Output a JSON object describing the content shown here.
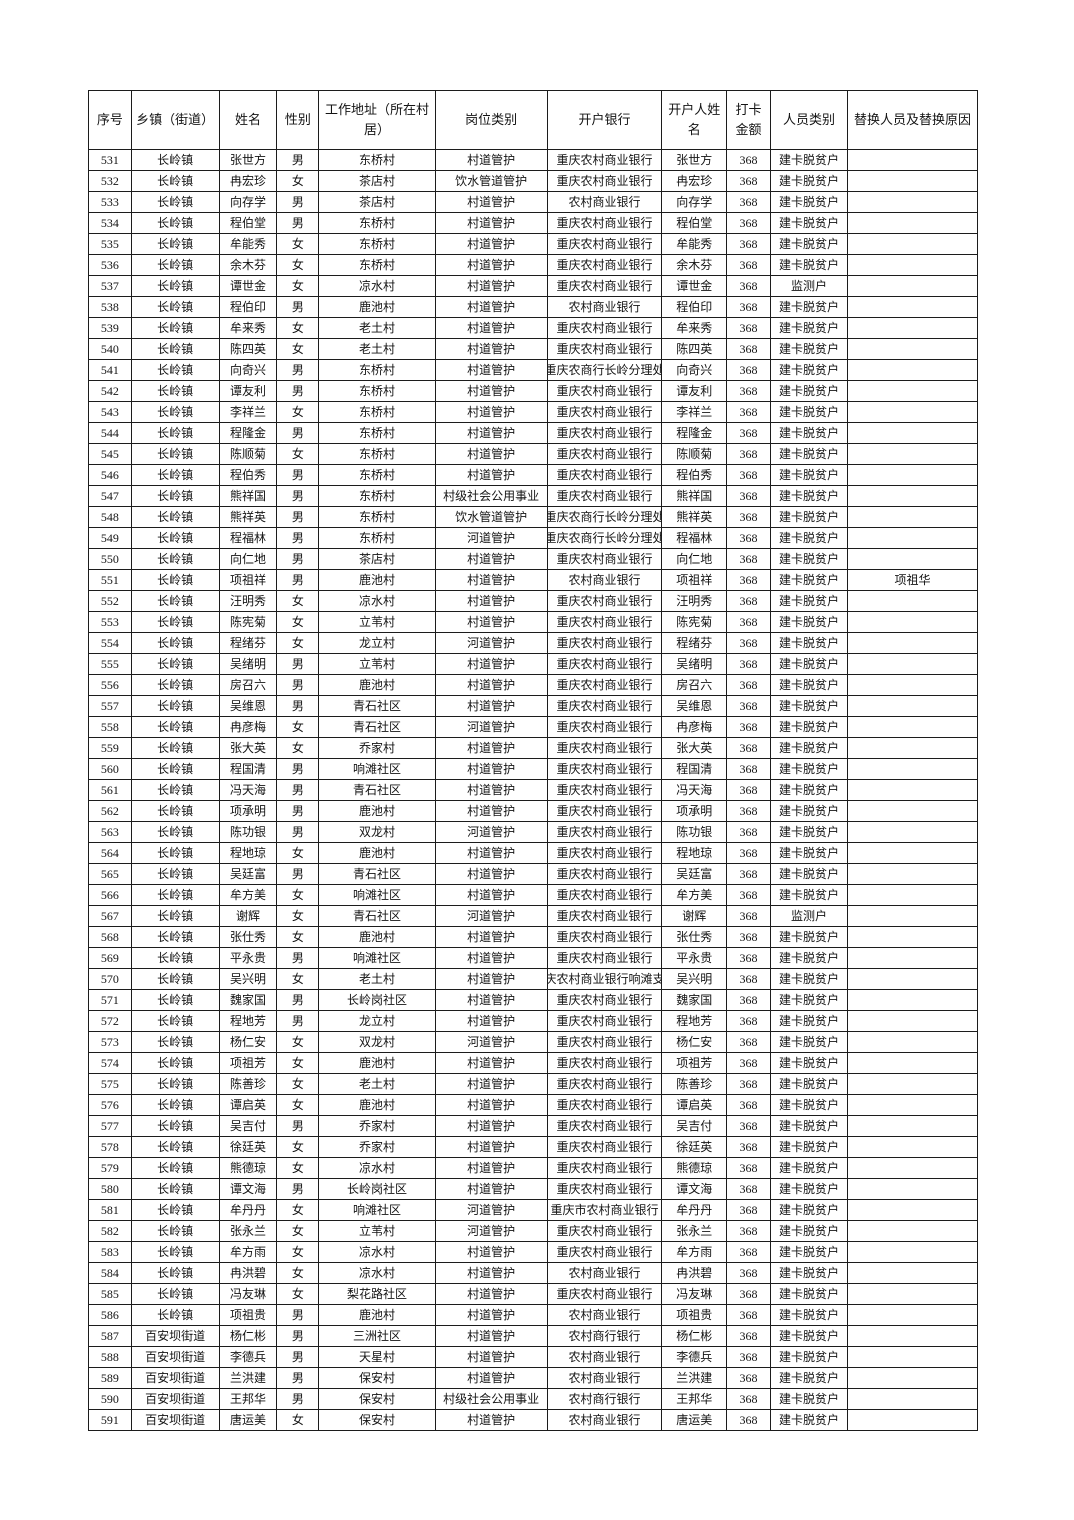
{
  "page": {
    "background_color": "#ffffff",
    "text_color": "#141414",
    "border_color": "#1c1c1c"
  },
  "table": {
    "columns": [
      {
        "key": "seq",
        "label": "序号"
      },
      {
        "key": "town",
        "label": "乡镇（街道）"
      },
      {
        "key": "name",
        "label": "姓名"
      },
      {
        "key": "gender",
        "label": "性别"
      },
      {
        "key": "village",
        "label": "工作地址（所在村居）"
      },
      {
        "key": "job",
        "label": "岗位类别"
      },
      {
        "key": "bank",
        "label": "开户银行"
      },
      {
        "key": "account",
        "label": "开户人姓名"
      },
      {
        "key": "amount",
        "label": "打卡金额"
      },
      {
        "key": "category",
        "label": "人员类别"
      },
      {
        "key": "replace",
        "label": "替换人员及替换原因"
      }
    ],
    "rows": [
      [
        "531",
        "长岭镇",
        "张世方",
        "男",
        "东桥村",
        "村道管护",
        "重庆农村商业银行",
        "张世方",
        "368",
        "建卡脱贫户",
        ""
      ],
      [
        "532",
        "长岭镇",
        "冉宏珍",
        "女",
        "茶店村",
        "饮水管道管护",
        "重庆农村商业银行",
        "冉宏珍",
        "368",
        "建卡脱贫户",
        ""
      ],
      [
        "533",
        "长岭镇",
        "向存学",
        "男",
        "茶店村",
        "村道管护",
        "农村商业银行",
        "向存学",
        "368",
        "建卡脱贫户",
        ""
      ],
      [
        "534",
        "长岭镇",
        "程伯堂",
        "男",
        "东桥村",
        "村道管护",
        "重庆农村商业银行",
        "程伯堂",
        "368",
        "建卡脱贫户",
        ""
      ],
      [
        "535",
        "长岭镇",
        "牟能秀",
        "女",
        "东桥村",
        "村道管护",
        "重庆农村商业银行",
        "牟能秀",
        "368",
        "建卡脱贫户",
        ""
      ],
      [
        "536",
        "长岭镇",
        "余木芬",
        "女",
        "东桥村",
        "村道管护",
        "重庆农村商业银行",
        "余木芬",
        "368",
        "建卡脱贫户",
        ""
      ],
      [
        "537",
        "长岭镇",
        "谭世金",
        "女",
        "凉水村",
        "村道管护",
        "重庆农村商业银行",
        "谭世金",
        "368",
        "监测户",
        ""
      ],
      [
        "538",
        "长岭镇",
        "程伯印",
        "男",
        "鹿池村",
        "村道管护",
        "农村商业银行",
        "程伯印",
        "368",
        "建卡脱贫户",
        ""
      ],
      [
        "539",
        "长岭镇",
        "牟来秀",
        "女",
        "老土村",
        "村道管护",
        "重庆农村商业银行",
        "牟来秀",
        "368",
        "建卡脱贫户",
        ""
      ],
      [
        "540",
        "长岭镇",
        "陈四英",
        "女",
        "老土村",
        "村道管护",
        "重庆农村商业银行",
        "陈四英",
        "368",
        "建卡脱贫户",
        ""
      ],
      [
        "541",
        "长岭镇",
        "向奇兴",
        "男",
        "东桥村",
        "村道管护",
        "重庆农商行长岭分理处",
        "向奇兴",
        "368",
        "建卡脱贫户",
        ""
      ],
      [
        "542",
        "长岭镇",
        "谭友利",
        "男",
        "东桥村",
        "村道管护",
        "重庆农村商业银行",
        "谭友利",
        "368",
        "建卡脱贫户",
        ""
      ],
      [
        "543",
        "长岭镇",
        "李祥兰",
        "女",
        "东桥村",
        "村道管护",
        "重庆农村商业银行",
        "李祥兰",
        "368",
        "建卡脱贫户",
        ""
      ],
      [
        "544",
        "长岭镇",
        "程隆金",
        "男",
        "东桥村",
        "村道管护",
        "重庆农村商业银行",
        "程隆金",
        "368",
        "建卡脱贫户",
        ""
      ],
      [
        "545",
        "长岭镇",
        "陈顺菊",
        "女",
        "东桥村",
        "村道管护",
        "重庆农村商业银行",
        "陈顺菊",
        "368",
        "建卡脱贫户",
        ""
      ],
      [
        "546",
        "长岭镇",
        "程伯秀",
        "男",
        "东桥村",
        "村道管护",
        "重庆农村商业银行",
        "程伯秀",
        "368",
        "建卡脱贫户",
        ""
      ],
      [
        "547",
        "长岭镇",
        "熊祥国",
        "男",
        "东桥村",
        "村级社会公用事业",
        "重庆农村商业银行",
        "熊祥国",
        "368",
        "建卡脱贫户",
        ""
      ],
      [
        "548",
        "长岭镇",
        "熊祥英",
        "男",
        "东桥村",
        "饮水管道管护",
        "重庆农商行长岭分理处",
        "熊祥英",
        "368",
        "建卡脱贫户",
        ""
      ],
      [
        "549",
        "长岭镇",
        "程福林",
        "男",
        "东桥村",
        "河道管护",
        "重庆农商行长岭分理处",
        "程福林",
        "368",
        "建卡脱贫户",
        ""
      ],
      [
        "550",
        "长岭镇",
        "向仁地",
        "男",
        "茶店村",
        "村道管护",
        "重庆农村商业银行",
        "向仁地",
        "368",
        "建卡脱贫户",
        ""
      ],
      [
        "551",
        "长岭镇",
        "项祖祥",
        "男",
        "鹿池村",
        "村道管护",
        "农村商业银行",
        "项祖祥",
        "368",
        "建卡脱贫户",
        "项祖华"
      ],
      [
        "552",
        "长岭镇",
        "汪明秀",
        "女",
        "凉水村",
        "村道管护",
        "重庆农村商业银行",
        "汪明秀",
        "368",
        "建卡脱贫户",
        ""
      ],
      [
        "553",
        "长岭镇",
        "陈宪菊",
        "女",
        "立苇村",
        "村道管护",
        "重庆农村商业银行",
        "陈宪菊",
        "368",
        "建卡脱贫户",
        ""
      ],
      [
        "554",
        "长岭镇",
        "程绪芬",
        "女",
        "龙立村",
        "河道管护",
        "重庆农村商业银行",
        "程绪芬",
        "368",
        "建卡脱贫户",
        ""
      ],
      [
        "555",
        "长岭镇",
        "吴绪明",
        "男",
        "立苇村",
        "村道管护",
        "重庆农村商业银行",
        "吴绪明",
        "368",
        "建卡脱贫户",
        ""
      ],
      [
        "556",
        "长岭镇",
        "房召六",
        "男",
        "鹿池村",
        "村道管护",
        "重庆农村商业银行",
        "房召六",
        "368",
        "建卡脱贫户",
        ""
      ],
      [
        "557",
        "长岭镇",
        "吴维恩",
        "男",
        "青石社区",
        "村道管护",
        "重庆农村商业银行",
        "吴维恩",
        "368",
        "建卡脱贫户",
        ""
      ],
      [
        "558",
        "长岭镇",
        "冉彦梅",
        "女",
        "青石社区",
        "河道管护",
        "重庆农村商业银行",
        "冉彦梅",
        "368",
        "建卡脱贫户",
        ""
      ],
      [
        "559",
        "长岭镇",
        "张大英",
        "女",
        "乔家村",
        "村道管护",
        "重庆农村商业银行",
        "张大英",
        "368",
        "建卡脱贫户",
        ""
      ],
      [
        "560",
        "长岭镇",
        "程国清",
        "男",
        "响滩社区",
        "村道管护",
        "重庆农村商业银行",
        "程国清",
        "368",
        "建卡脱贫户",
        ""
      ],
      [
        "561",
        "长岭镇",
        "冯天海",
        "男",
        "青石社区",
        "村道管护",
        "重庆农村商业银行",
        "冯天海",
        "368",
        "建卡脱贫户",
        ""
      ],
      [
        "562",
        "长岭镇",
        "项承明",
        "男",
        "鹿池村",
        "村道管护",
        "重庆农村商业银行",
        "项承明",
        "368",
        "建卡脱贫户",
        ""
      ],
      [
        "563",
        "长岭镇",
        "陈功银",
        "男",
        "双龙村",
        "河道管护",
        "重庆农村商业银行",
        "陈功银",
        "368",
        "建卡脱贫户",
        ""
      ],
      [
        "564",
        "长岭镇",
        "程地琼",
        "女",
        "鹿池村",
        "村道管护",
        "重庆农村商业银行",
        "程地琼",
        "368",
        "建卡脱贫户",
        ""
      ],
      [
        "565",
        "长岭镇",
        "吴廷富",
        "男",
        "青石社区",
        "村道管护",
        "重庆农村商业银行",
        "吴廷富",
        "368",
        "建卡脱贫户",
        ""
      ],
      [
        "566",
        "长岭镇",
        "牟方美",
        "女",
        "响滩社区",
        "村道管护",
        "重庆农村商业银行",
        "牟方美",
        "368",
        "建卡脱贫户",
        ""
      ],
      [
        "567",
        "长岭镇",
        "谢辉",
        "女",
        "青石社区",
        "河道管护",
        "重庆农村商业银行",
        "谢辉",
        "368",
        "监测户",
        ""
      ],
      [
        "568",
        "长岭镇",
        "张仕秀",
        "女",
        "鹿池村",
        "村道管护",
        "重庆农村商业银行",
        "张仕秀",
        "368",
        "建卡脱贫户",
        ""
      ],
      [
        "569",
        "长岭镇",
        "平永贵",
        "男",
        "响滩社区",
        "村道管护",
        "重庆农村商业银行",
        "平永贵",
        "368",
        "建卡脱贫户",
        ""
      ],
      [
        "570",
        "长岭镇",
        "吴兴明",
        "女",
        "老土村",
        "村道管护",
        "重庆农村商业银行响滩支行",
        "吴兴明",
        "368",
        "建卡脱贫户",
        ""
      ],
      [
        "571",
        "长岭镇",
        "魏家国",
        "男",
        "长岭岗社区",
        "村道管护",
        "重庆农村商业银行",
        "魏家国",
        "368",
        "建卡脱贫户",
        ""
      ],
      [
        "572",
        "长岭镇",
        "程地芳",
        "男",
        "龙立村",
        "村道管护",
        "重庆农村商业银行",
        "程地芳",
        "368",
        "建卡脱贫户",
        ""
      ],
      [
        "573",
        "长岭镇",
        "杨仁安",
        "女",
        "双龙村",
        "河道管护",
        "重庆农村商业银行",
        "杨仁安",
        "368",
        "建卡脱贫户",
        ""
      ],
      [
        "574",
        "长岭镇",
        "项祖芳",
        "女",
        "鹿池村",
        "村道管护",
        "重庆农村商业银行",
        "项祖芳",
        "368",
        "建卡脱贫户",
        ""
      ],
      [
        "575",
        "长岭镇",
        "陈善珍",
        "女",
        "老土村",
        "村道管护",
        "重庆农村商业银行",
        "陈善珍",
        "368",
        "建卡脱贫户",
        ""
      ],
      [
        "576",
        "长岭镇",
        "谭启英",
        "女",
        "鹿池村",
        "村道管护",
        "重庆农村商业银行",
        "谭启英",
        "368",
        "建卡脱贫户",
        ""
      ],
      [
        "577",
        "长岭镇",
        "吴吉付",
        "男",
        "乔家村",
        "村道管护",
        "重庆农村商业银行",
        "吴吉付",
        "368",
        "建卡脱贫户",
        ""
      ],
      [
        "578",
        "长岭镇",
        "徐廷英",
        "女",
        "乔家村",
        "村道管护",
        "重庆农村商业银行",
        "徐廷英",
        "368",
        "建卡脱贫户",
        ""
      ],
      [
        "579",
        "长岭镇",
        "熊德琼",
        "女",
        "凉水村",
        "村道管护",
        "重庆农村商业银行",
        "熊德琼",
        "368",
        "建卡脱贫户",
        ""
      ],
      [
        "580",
        "长岭镇",
        "谭文海",
        "男",
        "长岭岗社区",
        "村道管护",
        "重庆农村商业银行",
        "谭文海",
        "368",
        "建卡脱贫户",
        ""
      ],
      [
        "581",
        "长岭镇",
        "牟丹丹",
        "女",
        "响滩社区",
        "河道管护",
        "重庆市农村商业银行",
        "牟丹丹",
        "368",
        "建卡脱贫户",
        ""
      ],
      [
        "582",
        "长岭镇",
        "张永兰",
        "女",
        "立苇村",
        "河道管护",
        "重庆农村商业银行",
        "张永兰",
        "368",
        "建卡脱贫户",
        ""
      ],
      [
        "583",
        "长岭镇",
        "牟方雨",
        "女",
        "凉水村",
        "村道管护",
        "重庆农村商业银行",
        "牟方雨",
        "368",
        "建卡脱贫户",
        ""
      ],
      [
        "584",
        "长岭镇",
        "冉洪碧",
        "女",
        "凉水村",
        "村道管护",
        "农村商业银行",
        "冉洪碧",
        "368",
        "建卡脱贫户",
        ""
      ],
      [
        "585",
        "长岭镇",
        "冯友琳",
        "女",
        "梨花路社区",
        "村道管护",
        "重庆农村商业银行",
        "冯友琳",
        "368",
        "建卡脱贫户",
        ""
      ],
      [
        "586",
        "长岭镇",
        "项祖贵",
        "男",
        "鹿池村",
        "村道管护",
        "农村商业银行",
        "项祖贵",
        "368",
        "建卡脱贫户",
        ""
      ],
      [
        "587",
        "百安坝街道",
        "杨仁彬",
        "男",
        "三洲社区",
        "村道管护",
        "农村商行银行",
        "杨仁彬",
        "368",
        "建卡脱贫户",
        ""
      ],
      [
        "588",
        "百安坝街道",
        "李德兵",
        "男",
        "天星村",
        "村道管护",
        "农村商业银行",
        "李德兵",
        "368",
        "建卡脱贫户",
        ""
      ],
      [
        "589",
        "百安坝街道",
        "兰洪建",
        "男",
        "保安村",
        "村道管护",
        "农村商业银行",
        "兰洪建",
        "368",
        "建卡脱贫户",
        ""
      ],
      [
        "590",
        "百安坝街道",
        "王邦华",
        "男",
        "保安村",
        "村级社会公用事业",
        "农村商行银行",
        "王邦华",
        "368",
        "建卡脱贫户",
        ""
      ],
      [
        "591",
        "百安坝街道",
        "唐运美",
        "女",
        "保安村",
        "村道管护",
        "农村商业银行",
        "唐运美",
        "368",
        "建卡脱贫户",
        ""
      ]
    ]
  }
}
